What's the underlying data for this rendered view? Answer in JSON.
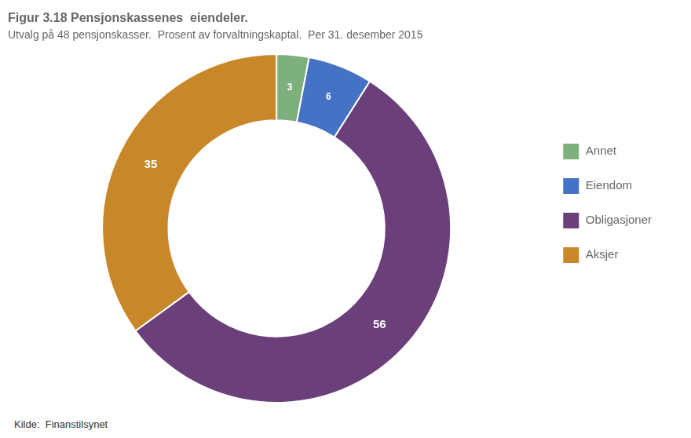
{
  "chart_data": {
    "type": "doughnut",
    "title": "Figur 3.18 Pensjonskassenes  eiendeler.",
    "subtitle": "Utvalg på 48 pensjonskasser.  Prosent av forvaltningskaptal.  Per 31. desember 2015",
    "source": "Kilde:  Finanstilsynet",
    "categories": [
      "Annet",
      "Eiendom",
      "Obligasjoner",
      "Aksjer"
    ],
    "values": [
      3,
      6,
      56,
      35
    ],
    "colors": [
      "#7EB07E",
      "#4472C4",
      "#6B3F7A",
      "#C8882A"
    ],
    "data_labels": true,
    "legend": "right"
  }
}
